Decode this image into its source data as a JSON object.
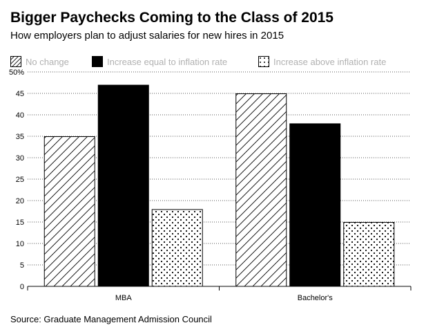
{
  "title": "Bigger Paychecks Coming to the Class of 2015",
  "subtitle": "How employers plan to adjust salaries for new hires in 2015",
  "source": "Source: Graduate Management Admission Council",
  "chart_data": {
    "type": "bar",
    "categories": [
      "MBA",
      "Bachelor's"
    ],
    "series": [
      {
        "name": "No change",
        "values": [
          35,
          45
        ],
        "pattern": "hatch"
      },
      {
        "name": "Increase equal to inflation rate",
        "values": [
          47,
          38
        ],
        "pattern": "solid"
      },
      {
        "name": "Increase above inflation rate",
        "values": [
          18,
          15
        ],
        "pattern": "dots"
      }
    ],
    "ylim": [
      0,
      50
    ],
    "yticks": [
      "0",
      "5",
      "10",
      "15",
      "20",
      "25",
      "30",
      "35",
      "40",
      "45",
      "50%"
    ],
    "grid": true,
    "legend_position": "top"
  }
}
